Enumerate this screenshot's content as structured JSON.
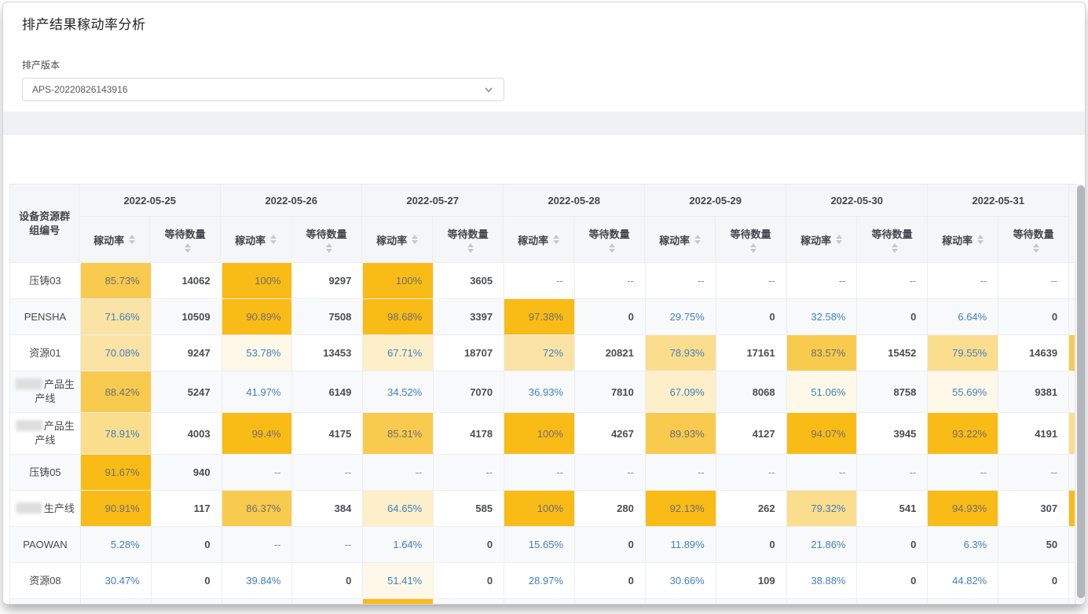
{
  "page": {
    "title": "排产结果稼动率分析"
  },
  "filter": {
    "label": "排产版本",
    "selected_value": "APS-20220826143916",
    "chevron_icon": "chevron-down"
  },
  "table": {
    "corner_header": "设备资源群组编号",
    "rate_header": "稼动率",
    "wait_header": "等待数量",
    "sort_icon": "sort-carets",
    "empty_placeholder": "--",
    "dates": [
      "2022-05-25",
      "2022-05-26",
      "2022-05-27",
      "2022-05-28",
      "2022-05-29",
      "2022-05-30",
      "2022-05-31"
    ],
    "rows": [
      {
        "name": "压铸03",
        "redacted": false,
        "next_col_sliver": null,
        "cells": [
          {
            "rate": 85.73,
            "wait": 14062
          },
          {
            "rate": 100,
            "wait": 9297
          },
          {
            "rate": 100,
            "wait": 3605
          },
          {
            "rate": null,
            "wait": null
          },
          {
            "rate": null,
            "wait": null
          },
          {
            "rate": null,
            "wait": null
          },
          {
            "rate": null,
            "wait": null
          }
        ]
      },
      {
        "name": "PENSHA",
        "redacted": false,
        "next_col_sliver": null,
        "cells": [
          {
            "rate": 71.66,
            "wait": 10509
          },
          {
            "rate": 90.89,
            "wait": 7508
          },
          {
            "rate": 98.68,
            "wait": 3397
          },
          {
            "rate": 97.38,
            "wait": 0
          },
          {
            "rate": 29.75,
            "wait": 0
          },
          {
            "rate": 32.58,
            "wait": 0
          },
          {
            "rate": 6.64,
            "wait": 0
          }
        ]
      },
      {
        "name": "资源01",
        "redacted": false,
        "next_col_sliver": "medium",
        "cells": [
          {
            "rate": 70.08,
            "wait": 9247
          },
          {
            "rate": 53.78,
            "wait": 13453
          },
          {
            "rate": 67.71,
            "wait": 18707
          },
          {
            "rate": 72,
            "wait": 20821
          },
          {
            "rate": 78.93,
            "wait": 17161
          },
          {
            "rate": 83.57,
            "wait": 15452
          },
          {
            "rate": 79.55,
            "wait": 14639
          }
        ]
      },
      {
        "name": "产品生产线",
        "redacted": true,
        "next_col_sliver": null,
        "cells": [
          {
            "rate": 88.42,
            "wait": 5247
          },
          {
            "rate": 41.97,
            "wait": 6149
          },
          {
            "rate": 34.52,
            "wait": 7070
          },
          {
            "rate": 36.93,
            "wait": 7810
          },
          {
            "rate": 67.09,
            "wait": 8068
          },
          {
            "rate": 51.06,
            "wait": 8758
          },
          {
            "rate": 55.69,
            "wait": 9381
          }
        ]
      },
      {
        "name": "产品生产线",
        "redacted": true,
        "next_col_sliver": "light",
        "cells": [
          {
            "rate": 78.91,
            "wait": 4003
          },
          {
            "rate": 99.4,
            "wait": 4175
          },
          {
            "rate": 85.31,
            "wait": 4178
          },
          {
            "rate": 100,
            "wait": 4267
          },
          {
            "rate": 89.93,
            "wait": 4127
          },
          {
            "rate": 94.07,
            "wait": 3945
          },
          {
            "rate": 93.22,
            "wait": 4191
          }
        ]
      },
      {
        "name": "压铸05",
        "redacted": false,
        "next_col_sliver": null,
        "cells": [
          {
            "rate": 91.67,
            "wait": 940
          },
          {
            "rate": null,
            "wait": null
          },
          {
            "rate": null,
            "wait": null
          },
          {
            "rate": null,
            "wait": null
          },
          {
            "rate": null,
            "wait": null
          },
          {
            "rate": null,
            "wait": null
          },
          {
            "rate": null,
            "wait": null
          }
        ]
      },
      {
        "name": "生产线",
        "redacted": true,
        "next_col_sliver": "dark",
        "cells": [
          {
            "rate": 90.91,
            "wait": 117
          },
          {
            "rate": 86.37,
            "wait": 384
          },
          {
            "rate": 64.65,
            "wait": 585
          },
          {
            "rate": 100,
            "wait": 280
          },
          {
            "rate": 92.13,
            "wait": 262
          },
          {
            "rate": 79.32,
            "wait": 541
          },
          {
            "rate": 94.93,
            "wait": 307
          }
        ]
      },
      {
        "name": "PAOWAN",
        "redacted": false,
        "next_col_sliver": null,
        "cells": [
          {
            "rate": 5.28,
            "wait": 0
          },
          {
            "rate": null,
            "wait": null
          },
          {
            "rate": 1.64,
            "wait": 0
          },
          {
            "rate": 15.65,
            "wait": 0
          },
          {
            "rate": 11.89,
            "wait": 0
          },
          {
            "rate": 21.86,
            "wait": 0
          },
          {
            "rate": 6.3,
            "wait": 50
          }
        ]
      },
      {
        "name": "资源08",
        "redacted": false,
        "next_col_sliver": null,
        "cells": [
          {
            "rate": 30.47,
            "wait": 0
          },
          {
            "rate": 39.84,
            "wait": 0
          },
          {
            "rate": 51.41,
            "wait": 0
          },
          {
            "rate": 28.97,
            "wait": 0
          },
          {
            "rate": 30.66,
            "wait": 109
          },
          {
            "rate": 38.88,
            "wait": 0
          },
          {
            "rate": 44.82,
            "wait": 0
          }
        ]
      }
    ],
    "partial_row": {
      "highlight_date_index": 2
    }
  },
  "colors": {
    "heat_90_plus": "#F9BB16",
    "heat_83_90": "#F8CB4F",
    "heat_76_83": "#FBDD8E",
    "heat_69_76": "#FAE3A4",
    "heat_60_69": "#FCEFC9",
    "heat_50_60": "#FEF8E8",
    "rate_text_high": "#6E6E6E",
    "rate_text_low": "#4180C0",
    "sliver_dark": "#F9BB16",
    "sliver_medium": "#F8CB4F",
    "sliver_light": "#FBDD8E"
  }
}
